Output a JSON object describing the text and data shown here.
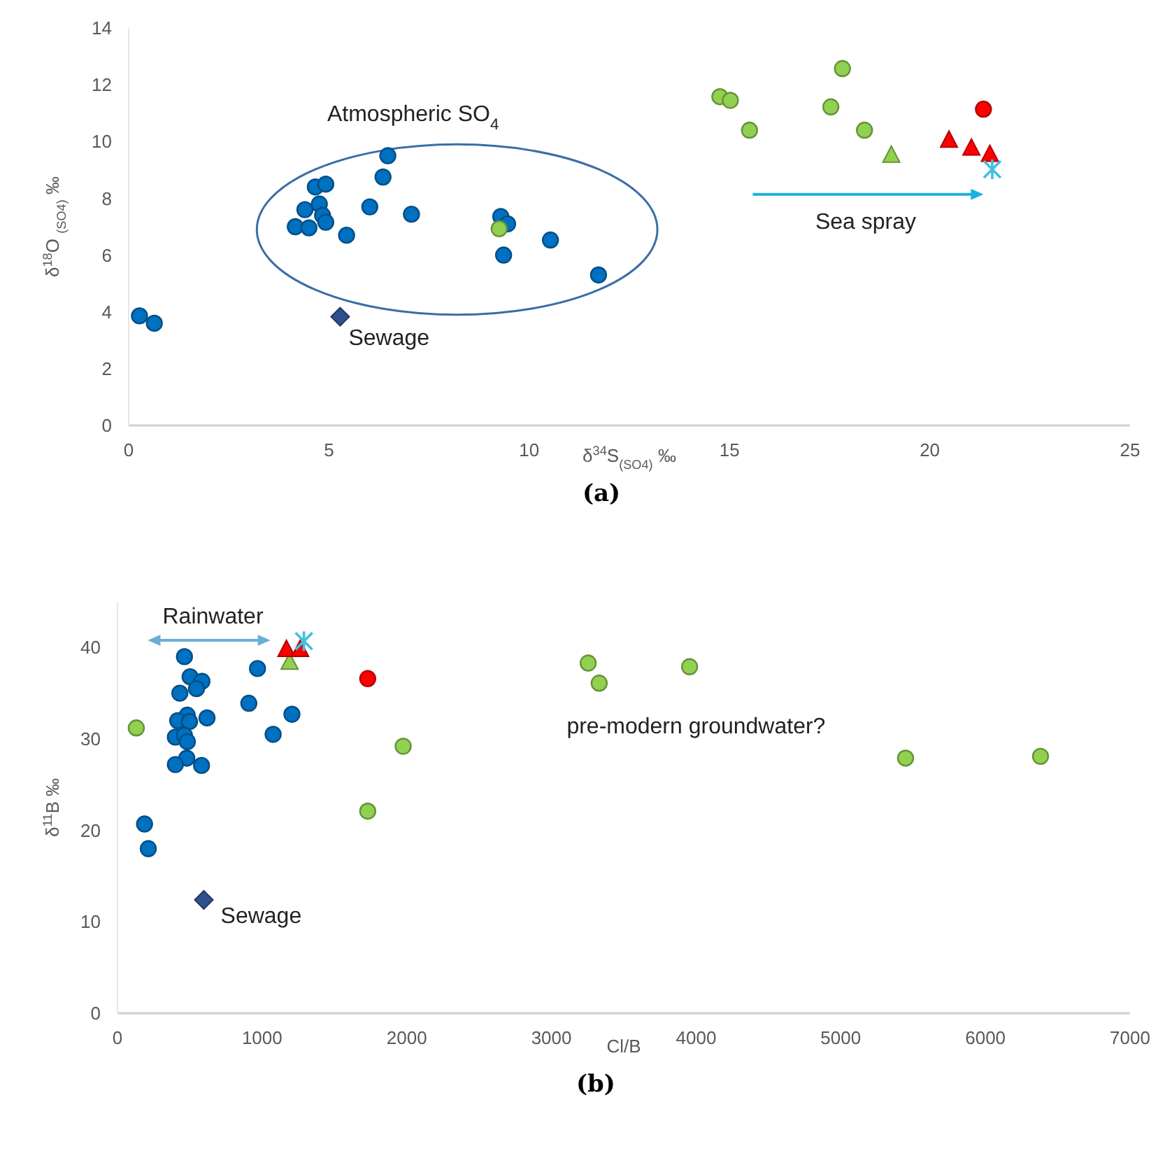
{
  "chart_data": [
    {
      "type": "scatter",
      "xlabel": "δ$^{34}$S$_{(SO4)}$ ‰",
      "ylabel": "δ$^{18}$O $_{(SO4)}$ ‰",
      "xlim": [
        0,
        25
      ],
      "ylim": [
        0,
        14
      ],
      "xticks": [
        0,
        5,
        10,
        15,
        20,
        25
      ],
      "yticks": [
        0,
        2,
        4,
        6,
        8,
        10,
        12,
        14
      ],
      "grid": false,
      "series": [
        {
          "color": "#0070c0",
          "marker": "circle",
          "x": [
            0.27,
            0.64,
            4.16,
            4.4,
            4.5,
            4.66,
            4.92,
            4.76,
            4.84,
            4.92,
            5.44,
            6.02,
            6.35,
            6.47,
            7.06,
            9.29,
            9.46,
            9.36,
            10.53,
            11.73
          ],
          "values": [
            3.86,
            3.6,
            7.0,
            7.6,
            6.96,
            8.4,
            8.5,
            7.8,
            7.4,
            7.16,
            6.7,
            7.7,
            8.75,
            9.5,
            7.44,
            7.36,
            7.1,
            6.0,
            6.53,
            5.3
          ]
        },
        {
          "color": "#92d050",
          "marker": "circle",
          "x": [
            9.25,
            14.76,
            15.02,
            15.5,
            17.82,
            17.53,
            18.37
          ],
          "values": [
            6.93,
            11.58,
            11.45,
            10.4,
            12.57,
            11.22,
            10.4
          ]
        },
        {
          "color": "#92d050",
          "marker": "triangle",
          "x": [
            19.04
          ],
          "values": [
            9.52
          ]
        },
        {
          "color": "#ff0000",
          "marker": "triangle",
          "x": [
            20.48,
            21.04,
            21.5
          ],
          "values": [
            10.05,
            9.77,
            9.55
          ]
        },
        {
          "color": "#ff0000",
          "marker": "circle",
          "x": [
            21.34
          ],
          "values": [
            11.14
          ]
        },
        {
          "color": "#40c0e0",
          "marker": "cross",
          "x": [
            21.56
          ],
          "values": [
            9.02
          ]
        },
        {
          "color": "#2f4f8f",
          "marker": "diamond",
          "x": [
            5.28
          ],
          "values": [
            3.83
          ]
        }
      ],
      "annotations": [
        "Atmospheric SO$_{4}$",
        "Sewage",
        "Sea spray",
        "(a)"
      ]
    },
    {
      "type": "scatter",
      "xlabel": "Cl/B",
      "ylabel": "δ$^{11}$B ‰",
      "xlim": [
        0,
        7000
      ],
      "ylim": [
        0,
        45
      ],
      "xticks": [
        0,
        1000,
        2000,
        3000,
        4000,
        5000,
        6000,
        7000
      ],
      "yticks": [
        0,
        10,
        20,
        30,
        40
      ],
      "grid": false,
      "series": [
        {
          "color": "#0070c0",
          "marker": "circle",
          "x": [
            463,
            968,
            502,
            584,
            546,
            431,
            908,
            1206,
            619,
            482,
            416,
            498,
            1076,
            400,
            463,
            483,
            479,
            400,
            581,
            187,
            213
          ],
          "values": [
            39.0,
            37.7,
            36.8,
            36.3,
            35.5,
            35.0,
            33.9,
            32.7,
            32.3,
            32.6,
            32.0,
            31.9,
            30.5,
            30.2,
            30.4,
            29.7,
            27.9,
            27.2,
            27.1,
            20.7,
            18.0
          ]
        },
        {
          "color": "#92d050",
          "marker": "circle",
          "x": [
            130,
            1730,
            1975,
            3254,
            3330,
            3955,
            5448,
            6381
          ],
          "values": [
            31.2,
            22.1,
            29.2,
            38.3,
            36.1,
            37.9,
            27.9,
            28.1
          ]
        },
        {
          "color": "#92d050",
          "marker": "triangle",
          "x": [
            1190
          ],
          "values": [
            38.4
          ]
        },
        {
          "color": "#ff0000",
          "marker": "triangle",
          "x": [
            1168,
            1263
          ],
          "values": [
            39.8,
            39.8
          ]
        },
        {
          "color": "#ff0000",
          "marker": "circle",
          "x": [
            1730
          ],
          "values": [
            36.6
          ]
        },
        {
          "color": "#40c0e0",
          "marker": "cross",
          "x": [
            1289
          ],
          "values": [
            40.7
          ]
        },
        {
          "color": "#2f4f8f",
          "marker": "diamond",
          "x": [
            597
          ],
          "values": [
            12.4
          ]
        }
      ],
      "annotations": [
        "Rainwater",
        "Sewage",
        "pre-modern groundwater?",
        "(b)"
      ]
    }
  ]
}
